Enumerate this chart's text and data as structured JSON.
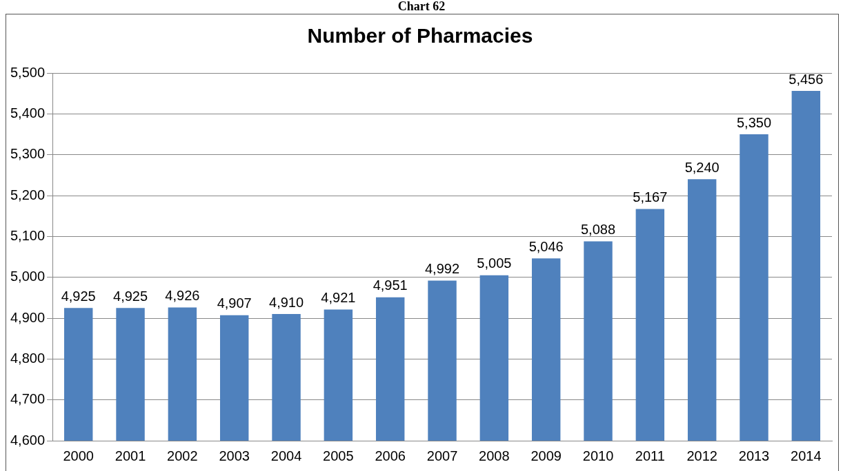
{
  "chart_data": {
    "type": "bar",
    "title": "Number of Pharmacies",
    "annotations": [
      "Chart 62"
    ],
    "categories": [
      "2000",
      "2001",
      "2002",
      "2003",
      "2004",
      "2005",
      "2006",
      "2007",
      "2008",
      "2009",
      "2010",
      "2011",
      "2012",
      "2013",
      "2014"
    ],
    "values": [
      4925,
      4925,
      4926,
      4907,
      4910,
      4921,
      4951,
      4992,
      5005,
      5046,
      5088,
      5167,
      5240,
      5350,
      5456
    ],
    "value_labels": [
      "4,925",
      "4,925",
      "4,926",
      "4,907",
      "4,910",
      "4,921",
      "4,951",
      "4,992",
      "5,005",
      "5,046",
      "5,088",
      "5,167",
      "5,240",
      "5,350",
      "5,456"
    ],
    "color": "#4f81bd",
    "ylim": [
      4600,
      5500
    ],
    "yticks": [
      {
        "value": 4600,
        "label": "4,600"
      },
      {
        "value": 4700,
        "label": "4,700"
      },
      {
        "value": 4800,
        "label": "4,800"
      },
      {
        "value": 4900,
        "label": "4,900"
      },
      {
        "value": 5000,
        "label": "5,000"
      },
      {
        "value": 5100,
        "label": "5,100"
      },
      {
        "value": 5200,
        "label": "5,200"
      },
      {
        "value": 5300,
        "label": "5,300"
      },
      {
        "value": 5400,
        "label": "5,400"
      },
      {
        "value": 5500,
        "label": "5,500"
      }
    ],
    "grid": "y",
    "legend": false
  }
}
